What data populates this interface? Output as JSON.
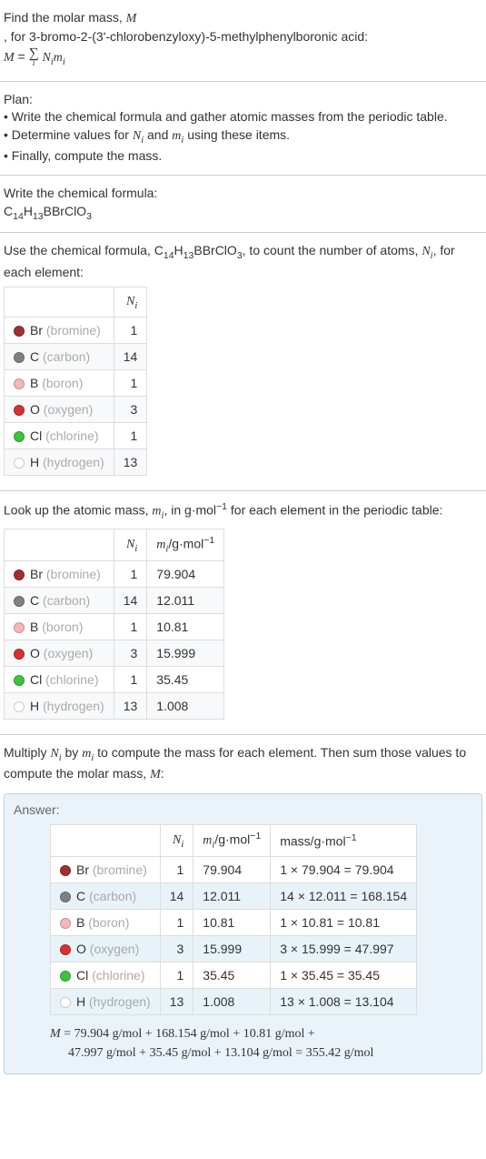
{
  "intro": {
    "line1_a": "Find the molar mass, ",
    "line1_var": "M",
    "line2": ", for 3-bromo-2-(3'-chlorobenzyloxy)-5-methylphenylboronic acid:",
    "eq_lhs": "M",
    "eq_eq": " = ",
    "sum_under": "i",
    "eq_rhs_a": "N",
    "eq_rhs_b": "i",
    "eq_rhs_c": "m",
    "eq_rhs_d": "i"
  },
  "plan": {
    "heading": "Plan:",
    "b1_a": "• Write the chemical formula and gather atomic masses from the periodic table.",
    "b2_a": "• Determine values for ",
    "b2_n": "N",
    "b2_ni": "i",
    "b2_mid": " and ",
    "b2_m": "m",
    "b2_mi": "i",
    "b2_end": " using these items.",
    "b3": "• Finally, compute the mass."
  },
  "chem": {
    "heading": "Write the chemical formula:",
    "parts": [
      "C",
      "14",
      "H",
      "13",
      "BBrClO",
      "3"
    ]
  },
  "count": {
    "text_a": "Use the chemical formula, ",
    "text_b": ", to count the number of atoms, ",
    "text_var": "N",
    "text_var_i": "i",
    "text_c": ", for each element:",
    "header_n": "N",
    "header_ni": "i"
  },
  "lookup": {
    "text_a": "Look up the atomic mass, ",
    "m": "m",
    "mi": "i",
    "text_b": ", in g·mol",
    "exp": "−1",
    "text_c": " for each element in the periodic table:",
    "header_m": "m",
    "header_mi": "i",
    "header_unit_a": "/g·mol",
    "header_unit_exp": "−1"
  },
  "mult": {
    "text_a": "Multiply ",
    "n": "N",
    "ni": "i",
    "text_b": " by ",
    "m": "m",
    "mi": "i",
    "text_c": " to compute the mass for each element. Then sum those values to compute the molar mass, ",
    "mv": "M",
    "text_d": ":"
  },
  "elements": [
    {
      "color": "#a03030",
      "sym": "Br",
      "name": " (bromine)",
      "n": "1",
      "m": "79.904",
      "mass": "1 × 79.904 = 79.904"
    },
    {
      "color": "#808080",
      "sym": "C",
      "name": " (carbon)",
      "n": "14",
      "m": "12.011",
      "mass": "14 × 12.011 = 168.154"
    },
    {
      "color": "#f7b7b7",
      "sym": "B",
      "name": " (boron)",
      "n": "1",
      "m": "10.81",
      "mass": "1 × 10.81 = 10.81"
    },
    {
      "color": "#d83030",
      "sym": "O",
      "name": " (oxygen)",
      "n": "3",
      "m": "15.999",
      "mass": "3 × 15.999 = 47.997"
    },
    {
      "color": "#3cc43c",
      "sym": "Cl",
      "name": " (chlorine)",
      "n": "1",
      "m": "35.45",
      "mass": "1 × 35.45 = 35.45"
    },
    {
      "color": "#ffffff",
      "sym": "H",
      "name": " (hydrogen)",
      "n": "13",
      "m": "1.008",
      "mass": "13 × 1.008 = 13.104"
    }
  ],
  "answer": {
    "label": "Answer:",
    "mass_header": "mass/g·mol",
    "mass_header_exp": "−1",
    "final_a": "M",
    "final_b": " = 79.904 g/mol + 168.154 g/mol + 10.81 g/mol + ",
    "final_c": "47.997 g/mol + 35.45 g/mol + 13.104 g/mol = 355.42 g/mol"
  }
}
